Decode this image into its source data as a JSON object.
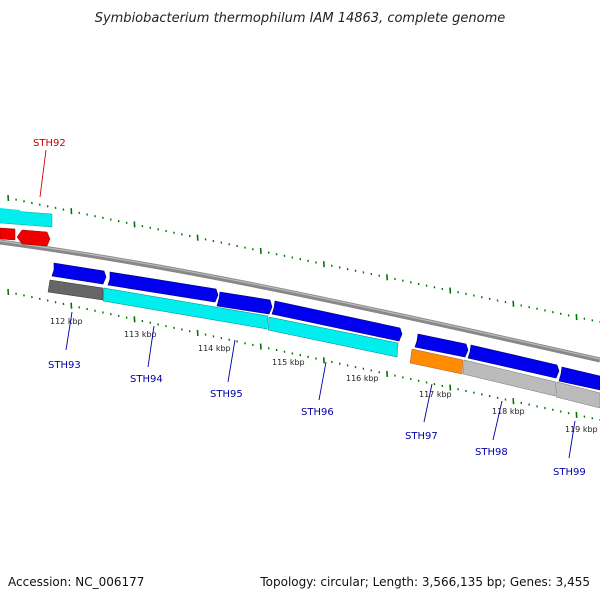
{
  "title": "Symbiobacterium thermophilum IAM 14863, complete genome",
  "footer": {
    "accession": "Accession: NC_006177",
    "summary": "Topology: circular; Length: 3,566,135 bp; Genes: 3,455"
  },
  "colors": {
    "cds_forward": "#0000ee",
    "cds_reverse": "#ee0000",
    "gene_cyan": "#00eeee",
    "gene_gray": "#bbbbbb",
    "gene_dark": "#666666",
    "gene_orange": "#ff8c00",
    "tick_green": "#007700",
    "backbone": "#888888",
    "label_blue": "#0000aa",
    "label_red": "#cc0000"
  },
  "kbp_labels": [
    "112 kbp",
    "113 kbp",
    "114 kbp",
    "115 kbp",
    "116 kbp",
    "117 kbp",
    "118 kbp",
    "119 kbp"
  ],
  "genes": [
    {
      "id": "sth92",
      "label": "STH92",
      "strand": "reverse"
    },
    {
      "id": "sth93",
      "label": "STH93",
      "strand": "forward"
    },
    {
      "id": "sth94",
      "label": "STH94",
      "strand": "forward"
    },
    {
      "id": "sth95",
      "label": "STH95",
      "strand": "forward"
    },
    {
      "id": "sth96",
      "label": "STH96",
      "strand": "forward"
    },
    {
      "id": "sth97",
      "label": "STH97",
      "strand": "forward"
    },
    {
      "id": "sth98",
      "label": "STH98",
      "strand": "forward"
    },
    {
      "id": "sth99",
      "label": "STH99",
      "strand": "forward"
    }
  ]
}
